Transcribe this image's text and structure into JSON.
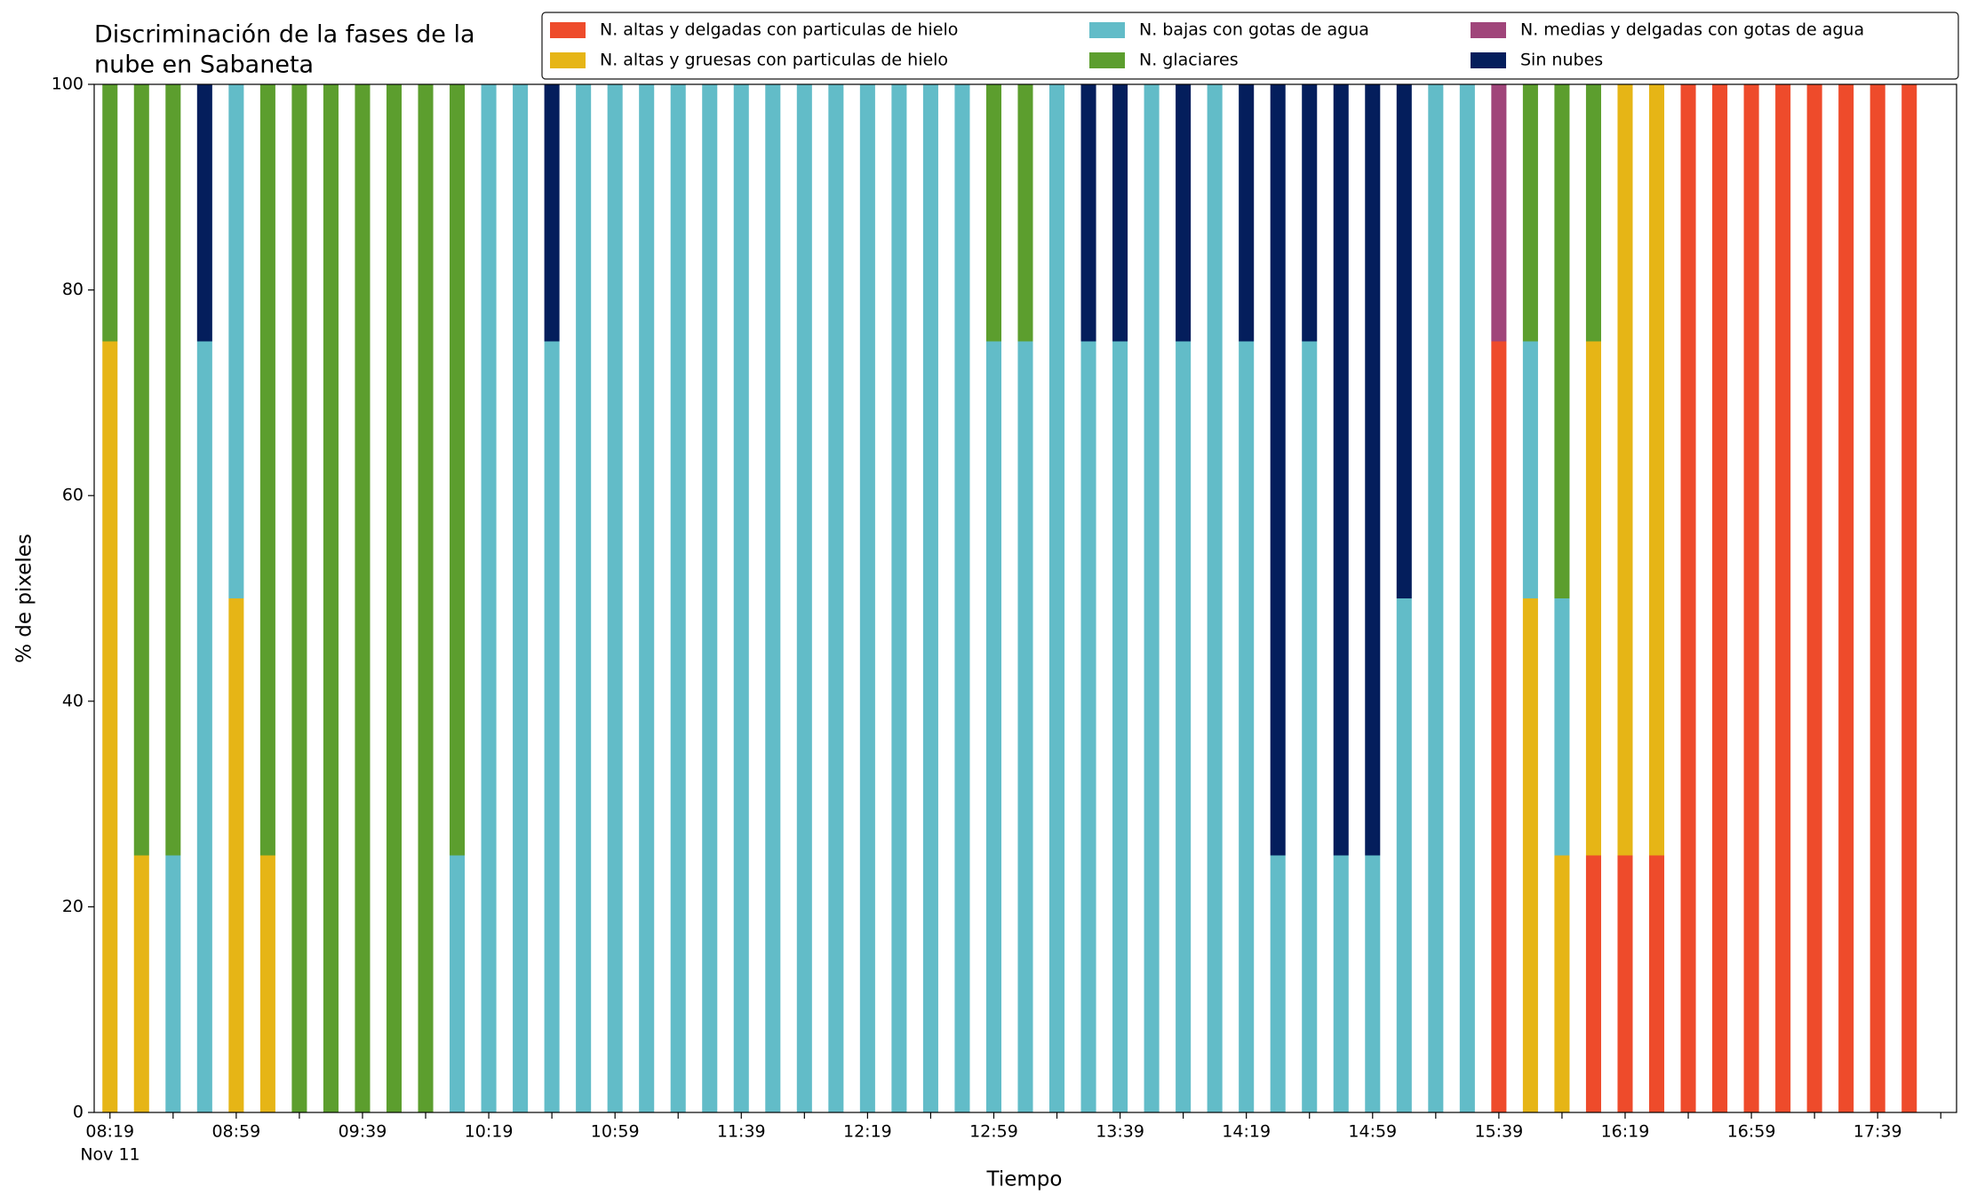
{
  "chart_data": {
    "type": "stacked_bar",
    "title": [
      "Discriminación de la fases de la",
      "nube en Sabaneta"
    ],
    "xlabel": "Tiempo",
    "ylabel": "% de pixeles",
    "date_label": "Nov 11",
    "categories": [
      "08:19",
      null,
      null,
      null,
      "08:59",
      null,
      null,
      null,
      "09:39",
      null,
      null,
      null,
      "10:19",
      null,
      null,
      null,
      "10:59",
      null,
      null,
      null,
      "11:39",
      null,
      null,
      null,
      "12:19",
      null,
      null,
      null,
      "12:59",
      null,
      null,
      null,
      "13:39",
      null,
      null,
      null,
      "14:19",
      null,
      null,
      null,
      "14:59",
      null,
      null,
      null,
      "15:39",
      null,
      null,
      null,
      "16:19",
      null,
      null,
      null,
      "16:59",
      null,
      null,
      null,
      "17:39",
      null
    ],
    "ylim": [
      0,
      100
    ],
    "yticks": [
      0,
      20,
      40,
      60,
      80,
      100
    ],
    "legend": "upper right",
    "series": [
      {
        "name": "N. altas y delgadas con particulas de hielo",
        "color": "#ee4b2b",
        "values": [
          0,
          0,
          0,
          0,
          0,
          0,
          0,
          0,
          0,
          0,
          0,
          0,
          0,
          0,
          0,
          0,
          0,
          0,
          0,
          0,
          0,
          0,
          0,
          0,
          0,
          0,
          0,
          0,
          0,
          0,
          0,
          0,
          0,
          0,
          0,
          0,
          0,
          0,
          0,
          0,
          0,
          0,
          0,
          0,
          75,
          0,
          0,
          25,
          25,
          25,
          100,
          100,
          100,
          100,
          100,
          100,
          100,
          100
        ]
      },
      {
        "name": "N. altas y gruesas con particulas de hielo",
        "color": "#e6b516",
        "values": [
          75,
          25,
          0,
          0,
          50,
          25,
          0,
          0,
          0,
          0,
          0,
          0,
          0,
          0,
          0,
          0,
          0,
          0,
          0,
          0,
          0,
          0,
          0,
          0,
          0,
          0,
          0,
          0,
          0,
          0,
          0,
          0,
          0,
          0,
          0,
          0,
          0,
          0,
          0,
          0,
          0,
          0,
          0,
          0,
          0,
          50,
          25,
          50,
          75,
          75,
          0,
          0,
          0,
          0,
          0,
          0,
          0,
          0
        ]
      },
      {
        "name": "N. bajas con gotas de agua",
        "color": "#62bcc8",
        "values": [
          0,
          0,
          25,
          75,
          50,
          0,
          0,
          0,
          0,
          0,
          0,
          25,
          100,
          100,
          75,
          100,
          100,
          100,
          100,
          100,
          100,
          100,
          100,
          100,
          100,
          100,
          100,
          100,
          75,
          75,
          100,
          75,
          75,
          100,
          75,
          100,
          75,
          25,
          75,
          25,
          25,
          50,
          100,
          100,
          0,
          25,
          25,
          0,
          0,
          0,
          0,
          0,
          0,
          0,
          0,
          0,
          0,
          0
        ]
      },
      {
        "name": "N. glaciares",
        "color": "#5c9e2e",
        "values": [
          25,
          75,
          75,
          0,
          0,
          75,
          100,
          100,
          100,
          100,
          100,
          75,
          0,
          0,
          0,
          0,
          0,
          0,
          0,
          0,
          0,
          0,
          0,
          0,
          0,
          0,
          0,
          0,
          25,
          25,
          0,
          0,
          0,
          0,
          0,
          0,
          0,
          0,
          0,
          0,
          0,
          0,
          0,
          0,
          0,
          25,
          50,
          25,
          0,
          0,
          0,
          0,
          0,
          0,
          0,
          0,
          0,
          0
        ]
      },
      {
        "name": "N. medias y delgadas con gotas de agua",
        "color": "#a0457a",
        "values": [
          0,
          0,
          0,
          0,
          0,
          0,
          0,
          0,
          0,
          0,
          0,
          0,
          0,
          0,
          0,
          0,
          0,
          0,
          0,
          0,
          0,
          0,
          0,
          0,
          0,
          0,
          0,
          0,
          0,
          0,
          0,
          0,
          0,
          0,
          0,
          0,
          0,
          0,
          0,
          0,
          0,
          0,
          0,
          0,
          25,
          0,
          0,
          0,
          0,
          0,
          0,
          0,
          0,
          0,
          0,
          0,
          0,
          0
        ]
      },
      {
        "name": "Sin nubes",
        "color": "#041e5c",
        "values": [
          0,
          0,
          0,
          25,
          0,
          0,
          0,
          0,
          0,
          0,
          0,
          0,
          0,
          0,
          25,
          0,
          0,
          0,
          0,
          0,
          0,
          0,
          0,
          0,
          0,
          0,
          0,
          0,
          0,
          0,
          0,
          25,
          25,
          0,
          25,
          0,
          25,
          75,
          25,
          75,
          75,
          50,
          0,
          0,
          0,
          0,
          0,
          0,
          0,
          0,
          0,
          0,
          0,
          0,
          0,
          0,
          0,
          0
        ]
      }
    ]
  }
}
